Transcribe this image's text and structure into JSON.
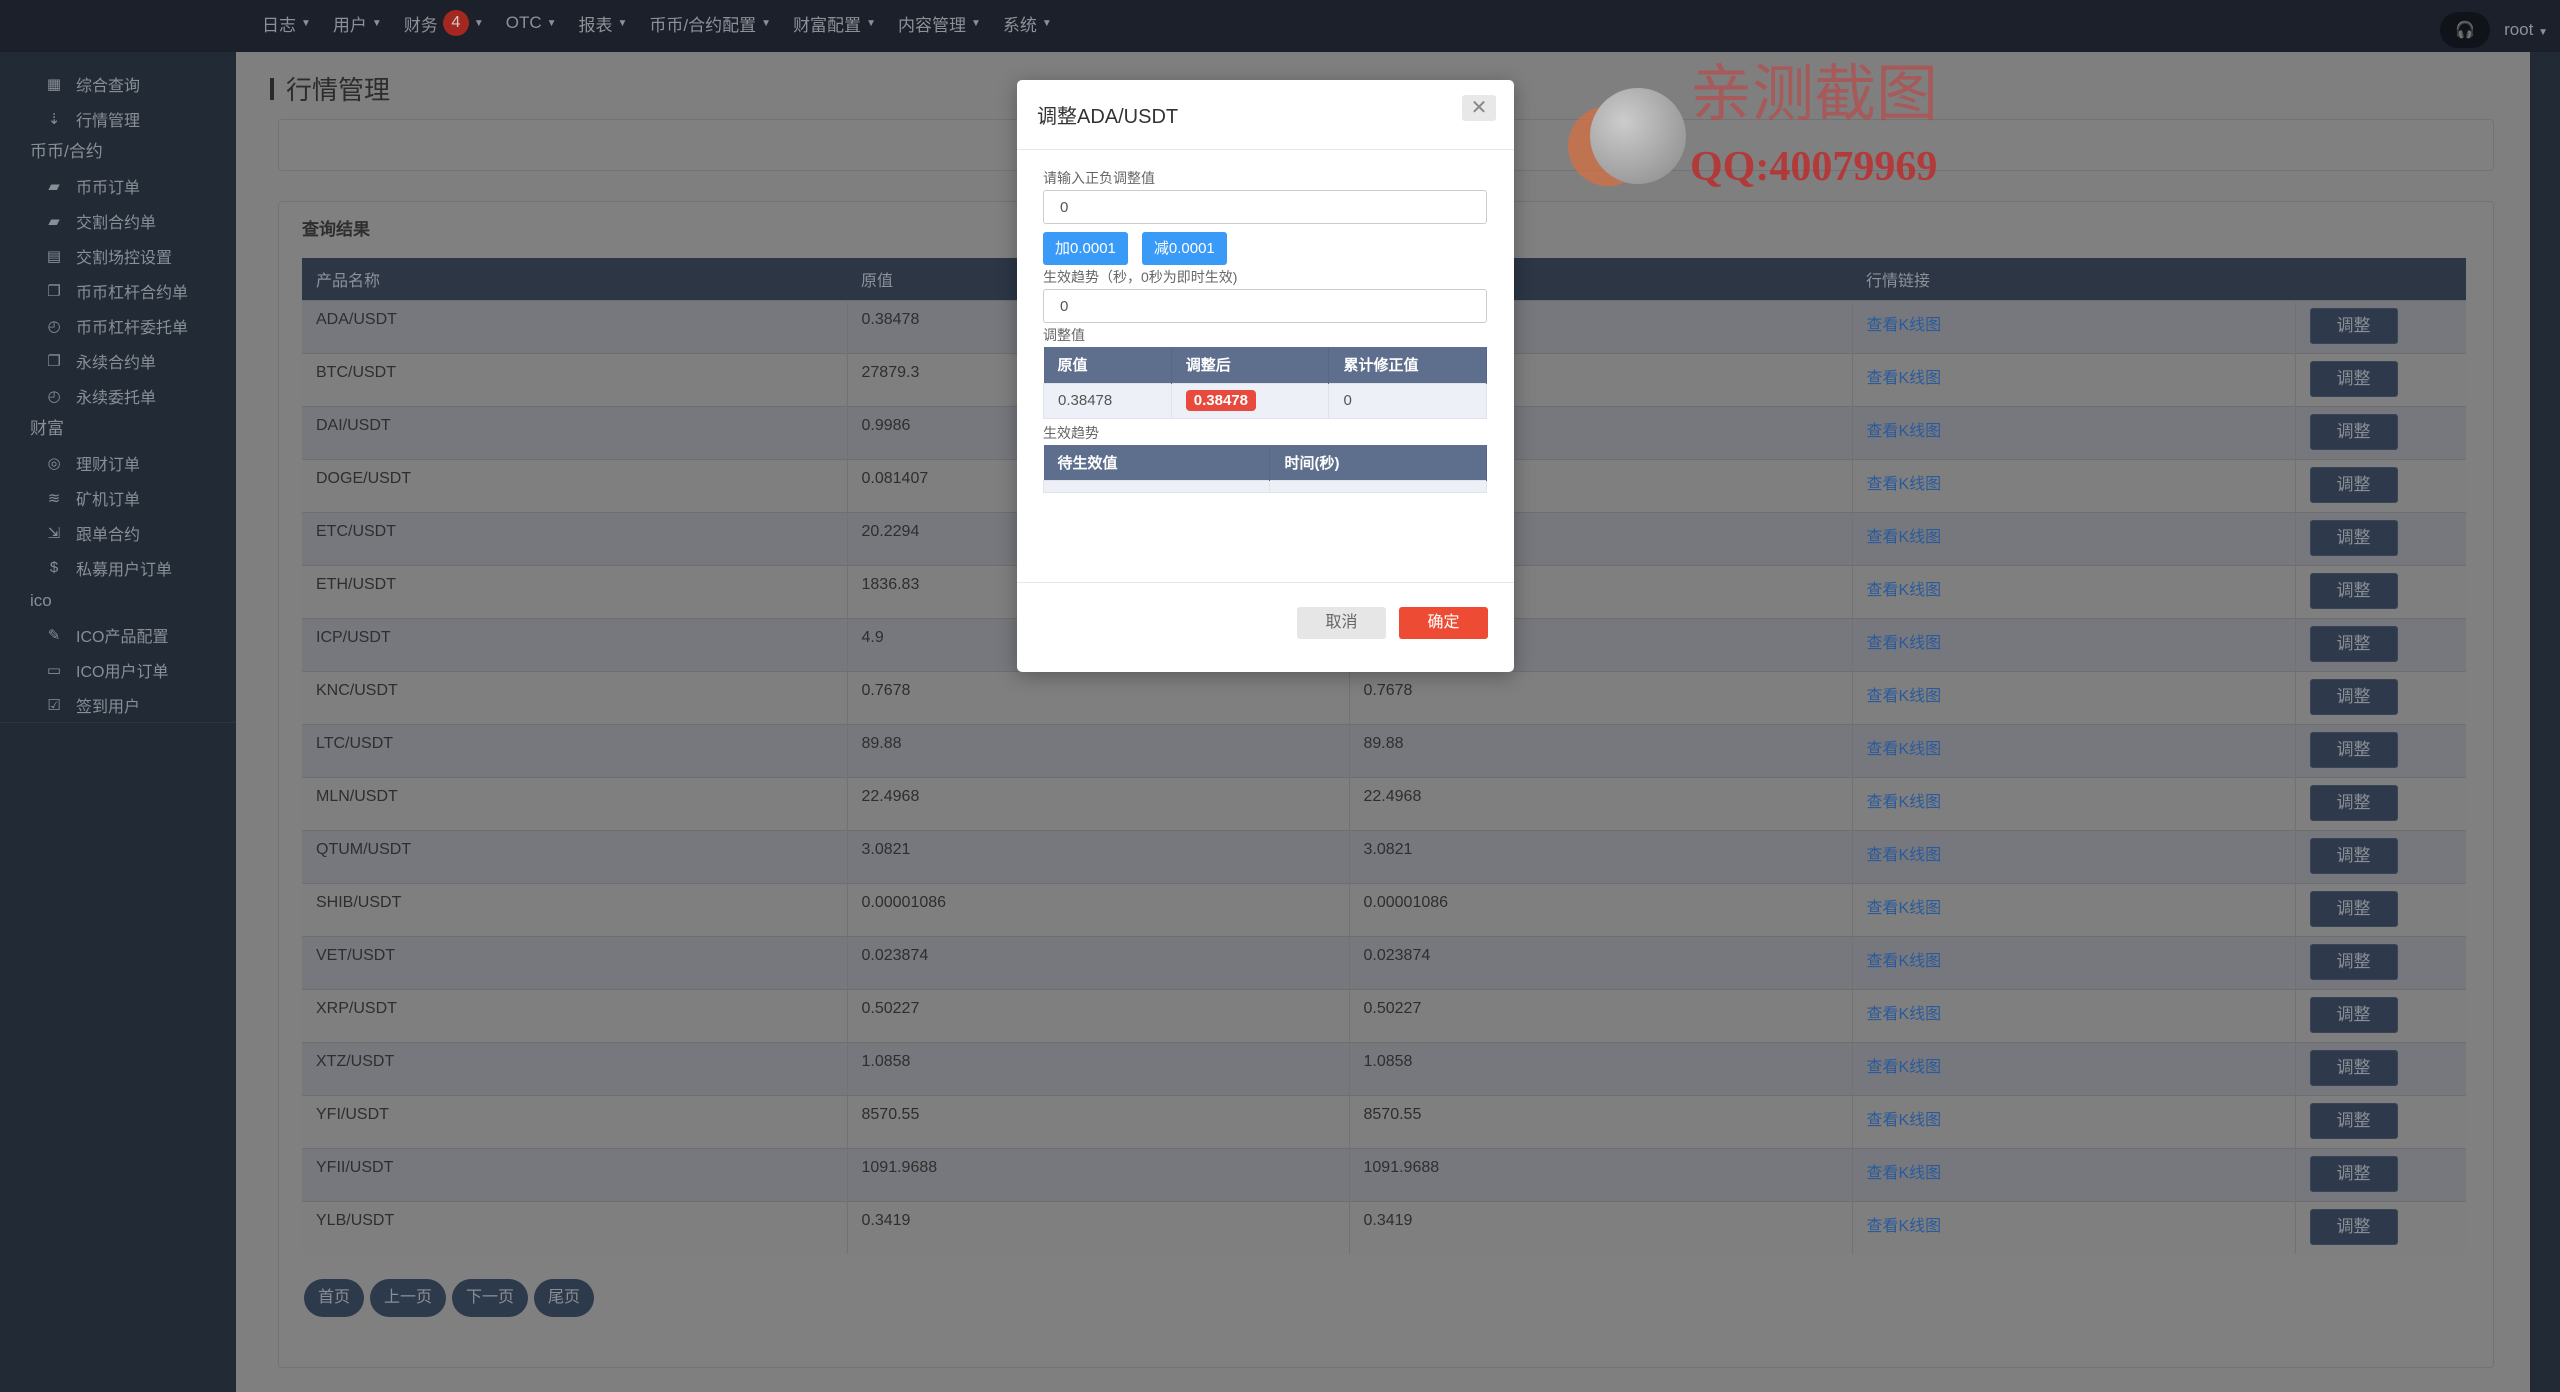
{
  "nav": {
    "items": [
      {
        "label": "日志"
      },
      {
        "label": "用户"
      },
      {
        "label": "财务",
        "badge": "4"
      },
      {
        "label": "OTC"
      },
      {
        "label": "报表"
      },
      {
        "label": "币币/合约配置"
      },
      {
        "label": "财富配置"
      },
      {
        "label": "内容管理"
      },
      {
        "label": "系统"
      }
    ],
    "user": "root"
  },
  "sidebar": {
    "top": [
      {
        "label": "综合查询",
        "icon": "grid-icon"
      },
      {
        "label": "行情管理",
        "icon": "sort-icon"
      }
    ],
    "sections": [
      {
        "title": "币币/合约",
        "items": [
          {
            "label": "币币订单",
            "icon": "bookmark-icon"
          },
          {
            "label": "交割合约单",
            "icon": "bookmark-icon"
          },
          {
            "label": "交割场控设置",
            "icon": "clipboard-icon"
          },
          {
            "label": "币币杠杆合约单",
            "icon": "copy-icon"
          },
          {
            "label": "币币杠杆委托单",
            "icon": "calendar-clock-icon"
          },
          {
            "label": "永续合约单",
            "icon": "copy-icon"
          },
          {
            "label": "永续委托单",
            "icon": "calendar-clock-icon"
          }
        ]
      },
      {
        "title": "财富",
        "items": [
          {
            "label": "理财订单",
            "icon": "coins-icon"
          },
          {
            "label": "矿机订单",
            "icon": "layers-icon"
          },
          {
            "label": "跟单合约",
            "icon": "share-icon"
          },
          {
            "label": "私募用户订单",
            "icon": "dollar-icon"
          }
        ]
      },
      {
        "title": "ico",
        "items": [
          {
            "label": "ICO产品配置",
            "icon": "edit-doc-icon"
          },
          {
            "label": "ICO用户订单",
            "icon": "monitor-icon"
          },
          {
            "label": "签到用户",
            "icon": "edit-icon"
          }
        ]
      }
    ]
  },
  "page": {
    "title": "行情管理",
    "results_title": "查询结果"
  },
  "table": {
    "headers": [
      "产品名称",
      "原值",
      "",
      "行情链接",
      ""
    ],
    "link_label": "查看K线图",
    "action_label": "调整",
    "rows": [
      [
        "ADA/USDT",
        "0.38478",
        ""
      ],
      [
        "BTC/USDT",
        "27879.3",
        ""
      ],
      [
        "DAI/USDT",
        "0.9986",
        ""
      ],
      [
        "DOGE/USDT",
        "0.081407",
        ""
      ],
      [
        "ETC/USDT",
        "20.2294",
        ""
      ],
      [
        "ETH/USDT",
        "1836.83",
        ""
      ],
      [
        "ICP/USDT",
        "4.9",
        ""
      ],
      [
        "KNC/USDT",
        "0.7678",
        "0.7678"
      ],
      [
        "LTC/USDT",
        "89.88",
        "89.88"
      ],
      [
        "MLN/USDT",
        "22.4968",
        "22.4968"
      ],
      [
        "QTUM/USDT",
        "3.0821",
        "3.0821"
      ],
      [
        "SHIB/USDT",
        "0.00001086",
        "0.00001086"
      ],
      [
        "VET/USDT",
        "0.023874",
        "0.023874"
      ],
      [
        "XRP/USDT",
        "0.50227",
        "0.50227"
      ],
      [
        "XTZ/USDT",
        "1.0858",
        "1.0858"
      ],
      [
        "YFI/USDT",
        "8570.55",
        "8570.55"
      ],
      [
        "YFII/USDT",
        "1091.9688",
        "1091.9688"
      ],
      [
        "YLB/USDT",
        "0.3419",
        "0.3419"
      ]
    ]
  },
  "pager": [
    "首页",
    "上一页",
    "下一页",
    "尾页"
  ],
  "modal": {
    "title": "调整ADA/USDT",
    "adjust_label": "请输入正负调整值",
    "adjust_value": "0",
    "plus_label": "加0.0001",
    "minus_label": "减0.0001",
    "trend_label": "生效趋势（秒，0秒为即时生效)",
    "trend_value": "0",
    "values_label": "调整值",
    "values_headers": [
      "原值",
      "调整后",
      "累计修正值"
    ],
    "values_row": [
      "0.38478",
      "0.38478",
      "0"
    ],
    "trend_table_label": "生效趋势",
    "trend_headers": [
      "待生效值",
      "时间(秒)"
    ],
    "cancel": "取消",
    "confirm": "确定"
  },
  "watermark": {
    "line1": "亲测截图",
    "line2": "QQ:40079969"
  },
  "colors": {
    "nav_bg": "#1b202b",
    "sidebar_bg": "#222a36",
    "table_header": "#2c3645",
    "primary_blue": "#3a9af7",
    "danger": "#ee4b35",
    "modal_table_header": "#5d6f8d"
  }
}
